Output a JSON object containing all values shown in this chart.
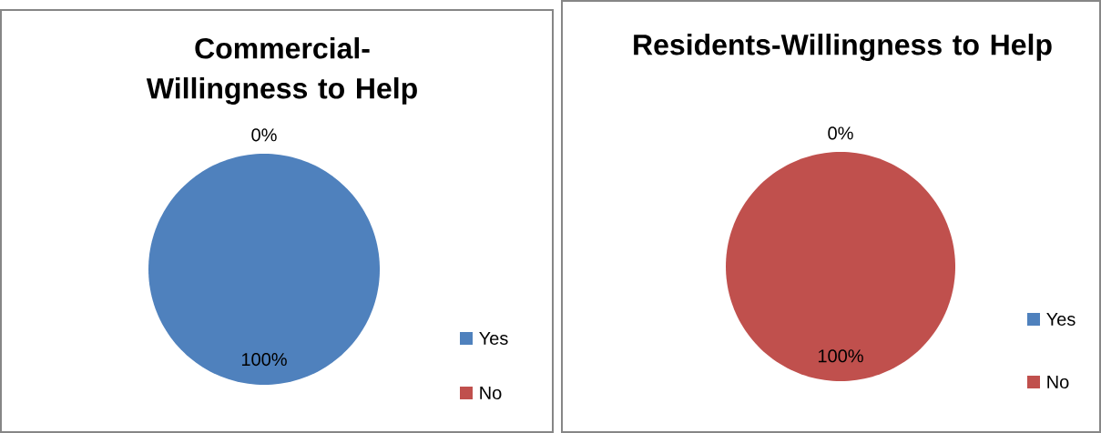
{
  "chart_data": [
    {
      "type": "pie",
      "title": "Commercial-Willingness to Help",
      "categories": [
        "Yes",
        "No"
      ],
      "values": [
        100,
        0
      ],
      "colors": [
        "#4f81bd",
        "#c0504d"
      ],
      "value_labels": [
        "100%",
        "0%"
      ],
      "legend": "right"
    },
    {
      "type": "pie",
      "title": "Residents-Willingness to Help",
      "categories": [
        "Yes",
        "No"
      ],
      "values": [
        0,
        100
      ],
      "colors": [
        "#4f81bd",
        "#c0504d"
      ],
      "value_labels": [
        "0%",
        "100%"
      ],
      "legend": "right"
    }
  ]
}
